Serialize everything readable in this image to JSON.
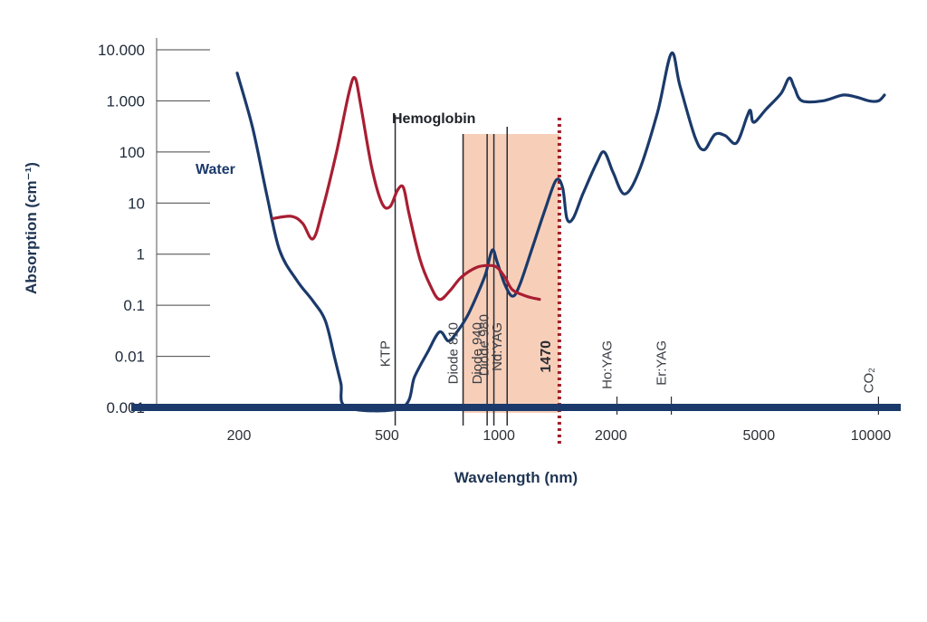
{
  "chart_data": {
    "type": "line",
    "xlabel": "Wavelength (nm)",
    "ylabel": "Absorption (cm⁻¹)",
    "x_scale": "log",
    "y_scale": "log",
    "xlim": [
      150,
      12000
    ],
    "ylim": [
      0.001,
      10000
    ],
    "x_ticks": [
      {
        "value": 200,
        "label": "200"
      },
      {
        "value": 500,
        "label": "500"
      },
      {
        "value": 1000,
        "label": "1000"
      },
      {
        "value": 2000,
        "label": "2000"
      },
      {
        "value": 5000,
        "label": "5000"
      },
      {
        "value": 10000,
        "label": "10000"
      }
    ],
    "y_ticks": [
      {
        "value": 10000,
        "label": "10.000"
      },
      {
        "value": 1000,
        "label": "1.000"
      },
      {
        "value": 100,
        "label": "100"
      },
      {
        "value": 10,
        "label": "10"
      },
      {
        "value": 1,
        "label": "1"
      },
      {
        "value": 0.1,
        "label": "0.1"
      },
      {
        "value": 0.01,
        "label": "0.01"
      },
      {
        "value": 0.001,
        "label": "0.001"
      }
    ],
    "series": [
      {
        "name": "Water",
        "color": "#1b3a6b",
        "points": [
          [
            200,
            3500
          ],
          [
            220,
            300
          ],
          [
            240,
            15
          ],
          [
            260,
            1.2
          ],
          [
            290,
            0.3
          ],
          [
            320,
            0.12
          ],
          [
            345,
            0.05
          ],
          [
            365,
            0.01
          ],
          [
            380,
            0.003
          ],
          [
            395,
            0.001
          ],
          [
            555,
            0.001
          ],
          [
            600,
            0.004
          ],
          [
            650,
            0.012
          ],
          [
            700,
            0.03
          ],
          [
            740,
            0.02
          ],
          [
            780,
            0.03
          ],
          [
            830,
            0.06
          ],
          [
            880,
            0.15
          ],
          [
            930,
            0.4
          ],
          [
            970,
            1.2
          ],
          [
            1000,
            0.7
          ],
          [
            1050,
            0.25
          ],
          [
            1100,
            0.15
          ],
          [
            1150,
            0.25
          ],
          [
            1250,
            1.5
          ],
          [
            1350,
            8
          ],
          [
            1440,
            28
          ],
          [
            1500,
            20
          ],
          [
            1540,
            5
          ],
          [
            1600,
            5
          ],
          [
            1700,
            15
          ],
          [
            1850,
            60
          ],
          [
            1940,
            100
          ],
          [
            2050,
            40
          ],
          [
            2200,
            15
          ],
          [
            2400,
            40
          ],
          [
            2700,
            600
          ],
          [
            2940,
            8500
          ],
          [
            3100,
            2000
          ],
          [
            3400,
            200
          ],
          [
            3600,
            110
          ],
          [
            3850,
            220
          ],
          [
            4100,
            210
          ],
          [
            4400,
            150
          ],
          [
            4700,
            500
          ],
          [
            4800,
            650
          ],
          [
            4900,
            380
          ],
          [
            5300,
            700
          ],
          [
            5800,
            1400
          ],
          [
            6100,
            2800
          ],
          [
            6300,
            1800
          ],
          [
            6600,
            1000
          ],
          [
            7500,
            1000
          ],
          [
            8500,
            1300
          ],
          [
            9200,
            1200
          ],
          [
            10000,
            1000
          ],
          [
            10600,
            1000
          ],
          [
            11000,
            1300
          ]
        ]
      },
      {
        "name": "Hemoglobin",
        "color": "#a81e32",
        "points": [
          [
            250,
            5
          ],
          [
            280,
            5.5
          ],
          [
            300,
            4
          ],
          [
            320,
            2
          ],
          [
            340,
            8
          ],
          [
            370,
            100
          ],
          [
            400,
            1500
          ],
          [
            415,
            2800
          ],
          [
            430,
            800
          ],
          [
            460,
            50
          ],
          [
            490,
            10
          ],
          [
            515,
            8.5
          ],
          [
            540,
            18
          ],
          [
            560,
            20
          ],
          [
            580,
            6
          ],
          [
            620,
            0.8
          ],
          [
            660,
            0.25
          ],
          [
            700,
            0.13
          ],
          [
            750,
            0.2
          ],
          [
            800,
            0.35
          ],
          [
            880,
            0.55
          ],
          [
            950,
            0.6
          ],
          [
            1000,
            0.55
          ],
          [
            1050,
            0.35
          ],
          [
            1100,
            0.2
          ],
          [
            1200,
            0.15
          ],
          [
            1300,
            0.13
          ]
        ]
      }
    ],
    "lasers": [
      {
        "name": "KTP",
        "wavelength": 532
      },
      {
        "name": "Diode 810",
        "wavelength": 810
      },
      {
        "name": "Diode 940",
        "wavelength": 940
      },
      {
        "name": "Diode 980",
        "wavelength": 980
      },
      {
        "name": "Nd:YAG",
        "wavelength": 1064
      },
      {
        "name": "1470",
        "wavelength": 1470,
        "highlight": true
      },
      {
        "name": "Ho:YAG",
        "wavelength": 2100
      },
      {
        "name": "Er:YAG",
        "wavelength": 2940
      },
      {
        "name": "CO₂",
        "wavelength": 10600
      }
    ],
    "highlight_band": [
      810,
      1470
    ],
    "band_color": "#f6c7ad",
    "marker_1470_color": "#a01e2a",
    "baseline_color": "#1b3a6b"
  }
}
